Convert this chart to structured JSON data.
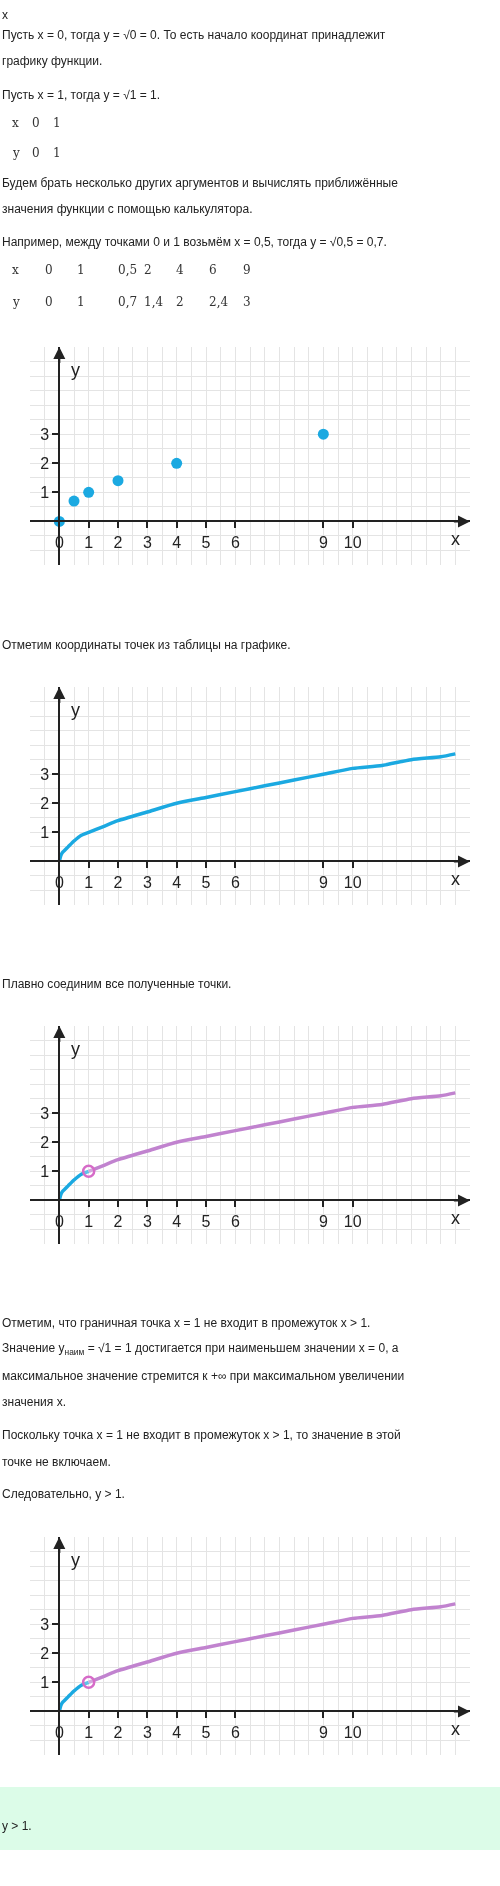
{
  "chart_data": [
    {
      "type": "other",
      "annotations": [
        "x",
        "Пусть x = 0, тогда y = √0 = 0. То есть начало координат принадлежит",
        "графику функции.",
        "Пусть x = 1, тогда y = √1 = 1."
      ]
    },
    {
      "type": "other",
      "annotations": [
        "x",
        "0",
        "1",
        "y",
        "0",
        "1"
      ]
    },
    {
      "type": "other",
      "annotations": [
        "Будем брать несколько других аргументов и вычислять приближённые",
        "значения функции с помощью калькулятора.",
        "Например, между точками 0 и 1 возьмём x = 0,5, тогда y = √0,5 = 0,7."
      ]
    },
    {
      "type": "other",
      "annotations": [
        "x",
        "0",
        "1",
        "0,5",
        "2",
        "4",
        "6",
        "9",
        "y",
        "0",
        "1",
        "0,7",
        "1,4",
        "2",
        "2,4",
        "3"
      ]
    },
    {
      "type": "scatter",
      "x": [
        0,
        0.5,
        1,
        2,
        4,
        9
      ],
      "values": [
        0,
        0.7,
        1,
        1.4,
        2,
        3
      ],
      "color": "#1ba9e1",
      "marker": "circle",
      "xlabel": "x",
      "ylabel": "y",
      "xlim": [
        -1,
        14
      ],
      "ylim": [
        -1.5,
        6
      ],
      "xticks": [
        0,
        1,
        2,
        3,
        4,
        5,
        6,
        9,
        10
      ],
      "yticks": [
        1,
        2,
        3
      ],
      "grid": true
    },
    {
      "type": "line",
      "title": "Отметим координаты точек из таблицы на графике.",
      "x": [
        0,
        0.05,
        0.1,
        0.2,
        0.3,
        0.5,
        0.75,
        1,
        1.5,
        2,
        3,
        4,
        5,
        6,
        7,
        8,
        9,
        10,
        11,
        12,
        13,
        13.5
      ],
      "values": [
        0,
        0.2,
        0.3,
        0.4,
        0.5,
        0.7,
        0.9,
        1,
        1.2,
        1.4,
        1.7,
        2,
        2.2,
        2.4,
        2.6,
        2.8,
        3,
        3.2,
        3.3,
        3.5,
        3.6,
        3.7
      ],
      "color": "#1ba9e1",
      "xlabel": "x",
      "ylabel": "y",
      "xlim": [
        -1,
        14
      ],
      "ylim": [
        -1.5,
        6
      ],
      "xticks": [
        0,
        1,
        2,
        3,
        4,
        5,
        6,
        9,
        10
      ],
      "yticks": [
        1,
        2,
        3
      ],
      "grid": true
    },
    {
      "type": "line",
      "title": "Плавно соединим все полученные точки.",
      "series": [
        {
          "color": "#1ba9e1",
          "x": [
            0,
            0.05,
            0.1,
            0.2,
            0.3,
            0.5,
            0.75,
            1
          ],
          "values": [
            0,
            0.2,
            0.3,
            0.4,
            0.5,
            0.7,
            0.9,
            1
          ]
        },
        {
          "color": "#c183cf",
          "x": [
            1,
            1.5,
            2,
            3,
            4,
            5,
            6,
            7,
            8,
            9,
            10,
            11,
            12,
            13,
            13.5
          ],
          "values": [
            1,
            1.2,
            1.4,
            1.7,
            2,
            2.2,
            2.4,
            2.6,
            2.8,
            3,
            3.2,
            3.3,
            3.5,
            3.6,
            3.7
          ]
        },
        {
          "type": "scatter",
          "marker": "circle",
          "color": "#d66bc8",
          "x": [
            1
          ],
          "values": [
            1
          ]
        }
      ],
      "xlabel": "x",
      "ylabel": "y",
      "xlim": [
        -1,
        14
      ],
      "ylim": [
        -1.5,
        6
      ],
      "xticks": [
        0,
        1,
        2,
        3,
        4,
        5,
        6,
        9,
        10
      ],
      "yticks": [
        1,
        2,
        3
      ],
      "grid": true
    },
    {
      "type": "other",
      "annotations": [
        "Отметим, что граничная точка x = 1 не входит в промежуток x > 1.",
        "Значение y$_{наим}$ = √1 = 1 достигается при наименьшем значении x = 0, а",
        "максимальное значение стремится к +∞ при максимальном увеличении",
        "значения x.",
        "Поскольку точка x = 1 не входит в промежуток x > 1, то значение в этой",
        "точке не включаем.",
        "Следовательно, y > 1."
      ]
    },
    {
      "type": "line",
      "series": [
        {
          "color": "#1ba9e1",
          "x": [
            0,
            0.05,
            0.1,
            0.2,
            0.3,
            0.5,
            0.75,
            1
          ],
          "values": [
            0,
            0.2,
            0.3,
            0.4,
            0.5,
            0.7,
            0.9,
            1
          ]
        },
        {
          "color": "#c183cf",
          "x": [
            1,
            1.5,
            2,
            3,
            4,
            5,
            6,
            7,
            8,
            9,
            10,
            11,
            12,
            13,
            13.5
          ],
          "values": [
            1,
            1.2,
            1.4,
            1.7,
            2,
            2.2,
            2.4,
            2.6,
            2.8,
            3,
            3.2,
            3.3,
            3.5,
            3.6,
            3.7
          ]
        },
        {
          "type": "scatter",
          "marker": "circle",
          "color": "#d66bc8",
          "x": [
            1
          ],
          "values": [
            1
          ]
        }
      ],
      "xlabel": "x",
      "ylabel": "y",
      "xlim": [
        -1,
        14
      ],
      "ylim": [
        -1.5,
        6
      ],
      "xticks": [
        0,
        1,
        2,
        3,
        4,
        5,
        6,
        9,
        10
      ],
      "yticks": [
        1,
        2,
        3
      ],
      "grid": true
    },
    {
      "type": "other",
      "color": "#dcfce8",
      "annotations": [
        "y > 1."
      ]
    }
  ]
}
